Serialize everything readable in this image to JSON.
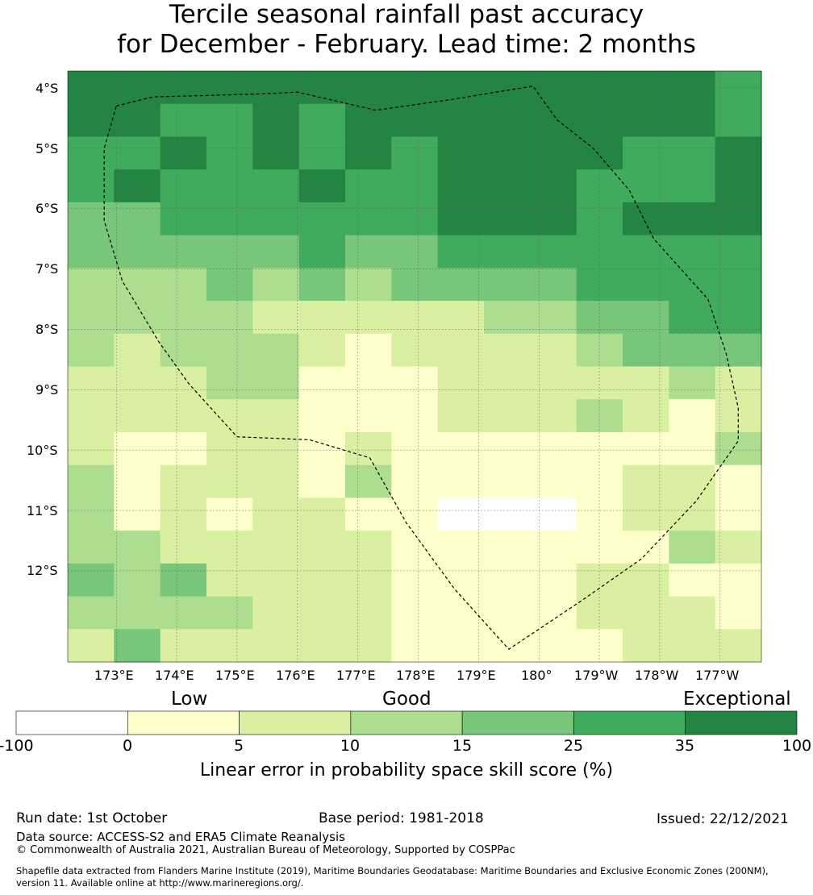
{
  "title": {
    "line1": "Tercile seasonal rainfall past accuracy",
    "line2": "for December - February. Lead time: 2 months"
  },
  "map": {
    "lat_labels": [
      "4°S",
      "5°S",
      "6°S",
      "7°S",
      "8°S",
      "9°S",
      "10°S",
      "11°S",
      "12°S"
    ],
    "lon_labels": [
      "173°E",
      "174°E",
      "175°E",
      "176°E",
      "177°E",
      "178°E",
      "179°E",
      "180°",
      "179°W",
      "178°W",
      "177°W"
    ],
    "grid_skill_classes": [
      [
        6,
        6,
        6,
        6,
        6,
        6,
        6,
        6,
        6,
        6,
        6,
        6,
        6,
        6,
        5
      ],
      [
        6,
        6,
        5,
        5,
        6,
        5,
        6,
        6,
        6,
        6,
        6,
        6,
        6,
        6,
        5
      ],
      [
        5,
        5,
        6,
        5,
        6,
        5,
        6,
        5,
        6,
        6,
        6,
        6,
        5,
        5,
        6
      ],
      [
        5,
        6,
        5,
        5,
        5,
        6,
        5,
        5,
        6,
        6,
        6,
        5,
        5,
        5,
        6
      ],
      [
        4,
        4,
        5,
        5,
        5,
        5,
        5,
        5,
        6,
        6,
        6,
        5,
        6,
        6,
        6
      ],
      [
        4,
        4,
        4,
        4,
        4,
        5,
        4,
        4,
        5,
        5,
        5,
        5,
        5,
        5,
        5
      ],
      [
        3,
        3,
        3,
        4,
        3,
        4,
        3,
        4,
        4,
        4,
        4,
        5,
        5,
        5,
        5
      ],
      [
        3,
        3,
        3,
        3,
        2,
        2,
        2,
        2,
        2,
        3,
        3,
        4,
        4,
        5,
        5
      ],
      [
        3,
        2,
        3,
        3,
        3,
        2,
        1,
        2,
        2,
        2,
        2,
        3,
        4,
        4,
        4
      ],
      [
        2,
        2,
        2,
        3,
        3,
        1,
        1,
        1,
        2,
        2,
        2,
        2,
        2,
        3,
        2
      ],
      [
        2,
        2,
        2,
        2,
        2,
        1,
        1,
        1,
        2,
        2,
        2,
        3,
        2,
        1,
        2
      ],
      [
        2,
        1,
        1,
        2,
        2,
        1,
        2,
        1,
        1,
        1,
        1,
        1,
        1,
        1,
        3
      ],
      [
        3,
        1,
        2,
        2,
        2,
        1,
        3,
        1,
        1,
        1,
        1,
        1,
        2,
        2,
        1
      ],
      [
        3,
        1,
        2,
        1,
        2,
        2,
        1,
        1,
        0,
        0,
        0,
        1,
        2,
        2,
        1
      ],
      [
        3,
        3,
        2,
        2,
        2,
        2,
        2,
        1,
        1,
        1,
        1,
        1,
        1,
        3,
        2
      ],
      [
        4,
        3,
        4,
        2,
        2,
        2,
        2,
        1,
        1,
        1,
        1,
        2,
        2,
        1,
        1
      ],
      [
        3,
        3,
        3,
        3,
        2,
        2,
        2,
        1,
        1,
        1,
        1,
        2,
        2,
        2,
        1
      ],
      [
        2,
        4,
        2,
        2,
        2,
        2,
        2,
        1,
        1,
        1,
        1,
        1,
        2,
        2,
        2
      ]
    ],
    "eez_boundary_deg": [
      [
        173.0,
        4.3
      ],
      [
        173.6,
        4.15
      ],
      [
        175.4,
        4.1
      ],
      [
        176.0,
        4.07
      ],
      [
        177.3,
        4.37
      ],
      [
        178.5,
        4.2
      ],
      [
        179.9,
        3.97
      ],
      [
        -179.7,
        4.53
      ],
      [
        -179.1,
        5.0
      ],
      [
        -178.5,
        5.7
      ],
      [
        -178.1,
        6.5
      ],
      [
        -177.2,
        7.5
      ],
      [
        -176.9,
        8.4
      ],
      [
        -176.7,
        9.3
      ],
      [
        -176.7,
        9.85
      ],
      [
        -177.4,
        10.85
      ],
      [
        -178.3,
        11.8
      ],
      [
        -179.3,
        12.5
      ],
      [
        179.5,
        13.3
      ],
      [
        178.6,
        12.3
      ],
      [
        177.8,
        11.2
      ],
      [
        177.2,
        10.13
      ],
      [
        176.2,
        9.83
      ],
      [
        175.0,
        9.78
      ],
      [
        174.2,
        8.9
      ],
      [
        173.7,
        8.2
      ],
      [
        173.1,
        7.2
      ],
      [
        172.8,
        6.2
      ],
      [
        172.8,
        5.0
      ],
      [
        173.0,
        4.3
      ]
    ]
  },
  "legend": {
    "category_labels": [
      "Low",
      "Good",
      "Exceptional"
    ],
    "tick_labels": [
      "-100",
      "0",
      "5",
      "10",
      "15",
      "25",
      "35",
      "100"
    ],
    "colors": [
      "#ffffff",
      "#ffffcc",
      "#d9f0a3",
      "#addd8e",
      "#78c679",
      "#41ab5d",
      "#238443"
    ],
    "axis_label": "Linear error in probability space skill score (%)"
  },
  "footer": {
    "run_date": "Run date: 1st October",
    "base_period": "Base period: 1981-2018",
    "issued": "Issued: 22/12/2021",
    "data_source": "Data source: ACCESS-S2 and ERA5 Climate Reanalysis",
    "copyright": "© Commonwealth of Australia 2021, Australian Bureau of Meteorology, Supported by COSPPac",
    "shapefile_line1": "Shapefile data extracted from Flanders Marine Institute (2019), Maritime Boundaries Geodatabase: Maritime Boundaries and Exclusive Economic Zones (200NM),",
    "shapefile_line2": "version 11. Available online at http://www.marineregions.org/."
  }
}
